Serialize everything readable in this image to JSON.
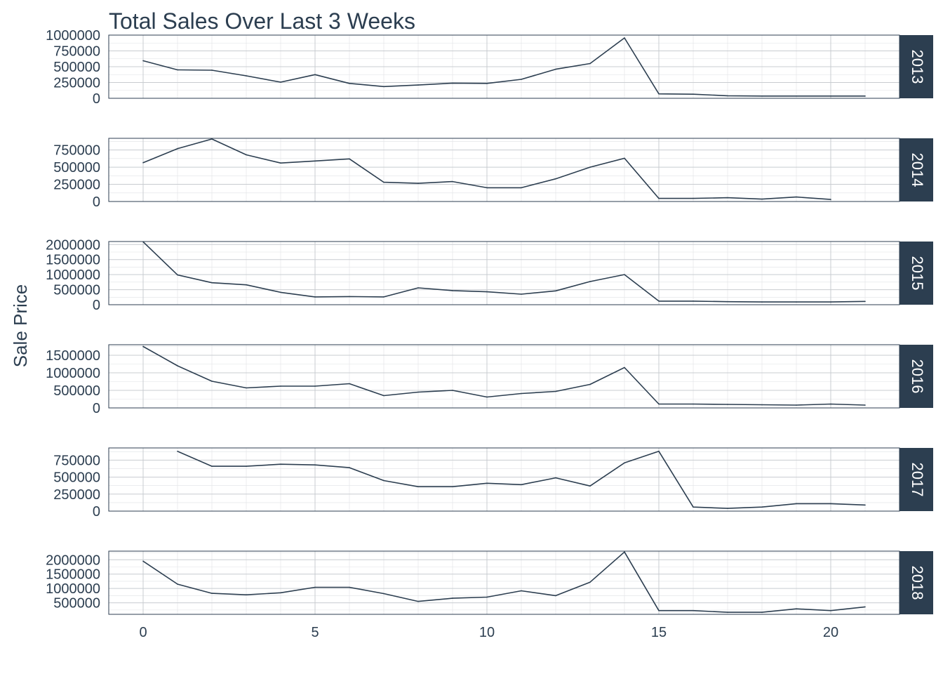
{
  "colors": {
    "line": "#2c3e50",
    "text": "#2c3e50",
    "strip_fill": "#2c3e50",
    "strip_text": "#ffffff",
    "grid_major": "#c8ccd0",
    "grid_minor": "#dfe2e5",
    "panel_border": "#2c3e50"
  },
  "chart_data": {
    "type": "line",
    "title": "Total Sales Over Last 3 Weeks",
    "xlabel": "",
    "ylabel": "Sale Price",
    "xlim": [
      -1,
      22
    ],
    "x_ticks": [
      0,
      5,
      10,
      15,
      20
    ],
    "grid": true,
    "facet_strip_position": "right",
    "panels": [
      {
        "label": "2013",
        "ylim": [
          0,
          1000000
        ],
        "y_ticks": [
          0,
          250000,
          500000,
          750000,
          1000000
        ],
        "x": [
          0,
          1,
          2,
          3,
          4,
          5,
          6,
          7,
          8,
          9,
          10,
          11,
          12,
          13,
          14,
          15,
          16,
          17,
          18,
          19,
          20,
          21
        ],
        "values": [
          595000,
          450000,
          445000,
          355000,
          255000,
          375000,
          235000,
          185000,
          210000,
          240000,
          235000,
          300000,
          460000,
          550000,
          955000,
          70000,
          65000,
          40000,
          35000,
          35000,
          35000,
          35000
        ]
      },
      {
        "label": "2014",
        "ylim": [
          0,
          920000
        ],
        "y_ticks": [
          0,
          250000,
          500000,
          750000
        ],
        "x": [
          0,
          1,
          2,
          3,
          4,
          5,
          6,
          7,
          8,
          9,
          10,
          11,
          12,
          13,
          14,
          15,
          16,
          17,
          18,
          19,
          20
        ],
        "values": [
          565000,
          770000,
          910000,
          680000,
          560000,
          590000,
          620000,
          280000,
          265000,
          290000,
          200000,
          200000,
          330000,
          500000,
          630000,
          45000,
          45000,
          55000,
          35000,
          65000,
          30000
        ]
      },
      {
        "label": "2015",
        "ylim": [
          0,
          2100000
        ],
        "y_ticks": [
          0,
          500000,
          1000000,
          1500000,
          2000000
        ],
        "x": [
          0,
          1,
          2,
          3,
          4,
          5,
          6,
          7,
          8,
          9,
          10,
          11,
          12,
          13,
          14,
          15,
          16,
          17,
          18,
          19,
          20,
          21
        ],
        "values": [
          2090000,
          990000,
          730000,
          660000,
          410000,
          260000,
          270000,
          260000,
          560000,
          470000,
          430000,
          350000,
          460000,
          770000,
          1000000,
          120000,
          120000,
          100000,
          90000,
          90000,
          90000,
          110000
        ]
      },
      {
        "label": "2016",
        "ylim": [
          0,
          1800000
        ],
        "y_ticks": [
          0,
          500000,
          1000000,
          1500000
        ],
        "x": [
          0,
          1,
          2,
          3,
          4,
          5,
          6,
          7,
          8,
          9,
          10,
          11,
          12,
          13,
          14,
          15,
          16,
          17,
          18,
          19,
          20,
          21
        ],
        "values": [
          1750000,
          1200000,
          760000,
          570000,
          620000,
          620000,
          690000,
          350000,
          450000,
          500000,
          310000,
          410000,
          470000,
          670000,
          1150000,
          110000,
          110000,
          100000,
          90000,
          80000,
          110000,
          80000
        ]
      },
      {
        "label": "2017",
        "ylim": [
          0,
          930000
        ],
        "y_ticks": [
          0,
          250000,
          500000,
          750000
        ],
        "x": [
          1,
          2,
          3,
          4,
          5,
          6,
          7,
          8,
          9,
          10,
          11,
          12,
          13,
          14,
          15,
          16,
          17,
          18,
          19,
          20,
          21
        ],
        "values": [
          880000,
          660000,
          660000,
          690000,
          680000,
          640000,
          450000,
          360000,
          360000,
          410000,
          390000,
          490000,
          370000,
          710000,
          880000,
          60000,
          40000,
          60000,
          110000,
          110000,
          90000
        ]
      },
      {
        "label": "2018",
        "ylim": [
          100000,
          2300000
        ],
        "y_ticks": [
          500000,
          1000000,
          1500000,
          2000000
        ],
        "x": [
          0,
          1,
          2,
          3,
          4,
          5,
          6,
          7,
          8,
          9,
          10,
          11,
          12,
          13,
          14,
          15,
          16,
          17,
          18,
          19,
          20,
          21
        ],
        "values": [
          1950000,
          1150000,
          830000,
          780000,
          850000,
          1040000,
          1040000,
          820000,
          550000,
          660000,
          700000,
          920000,
          750000,
          1220000,
          2270000,
          230000,
          230000,
          170000,
          170000,
          290000,
          230000,
          360000
        ]
      }
    ]
  }
}
